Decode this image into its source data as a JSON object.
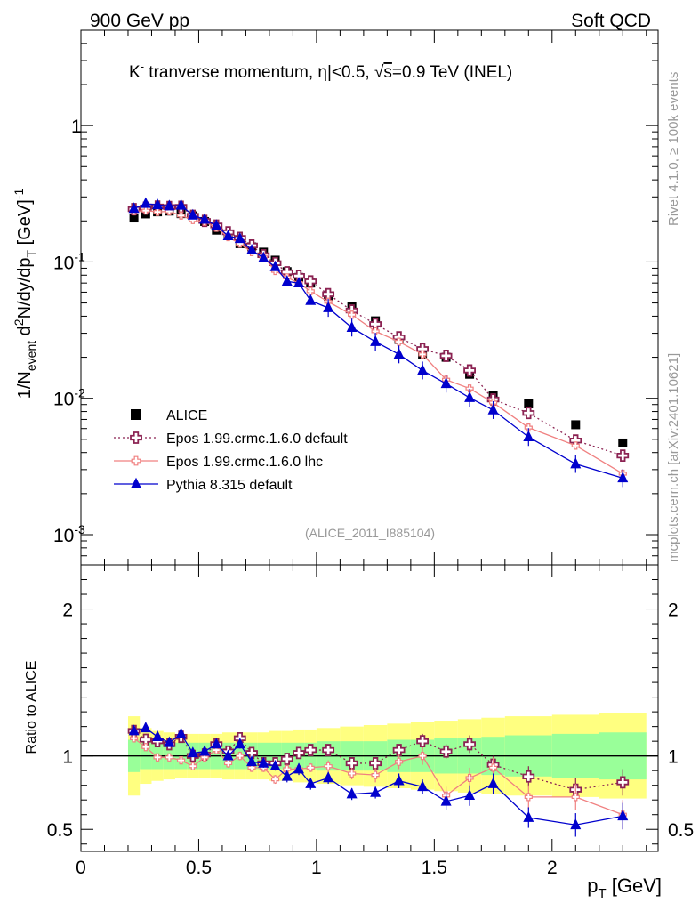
{
  "header": {
    "left": "900 GeV pp",
    "right": "Soft QCD"
  },
  "side": {
    "rivet": "Rivet 4.1.0, ≥ 100k events",
    "mcplots": "mcplots.cern.ch [arXiv:2401.10621]"
  },
  "chart_data": {
    "type": "scatter",
    "title": "K⁻ tranverse momentum, |η|<0.5, √s=0.9 TeV (INEL)",
    "title_parts": {
      "particle": "K",
      "sup": "-",
      "rest1": " tranverse momentum, ",
      "eta": "η",
      "rest2": "|<0.5, ",
      "sqrt": "√",
      "s": "s",
      "rest3": "=0.9 TeV (INEL)"
    },
    "analysis_id": "(ALICE_2011_I885104)",
    "xlabel": "p_T [GeV]",
    "ylabel": "1/N_event d²N/dy/dp_T [GeV]⁻¹",
    "ratio_ylabel": "Ratio to ALICE",
    "xlim": [
      0,
      2.45
    ],
    "ylim": [
      0.0006,
      5
    ],
    "yscale": "log",
    "ratio_ylim": [
      0.35,
      2.3
    ],
    "x_ticks": [
      0,
      0.5,
      1,
      1.5,
      2
    ],
    "x_tick_labels": [
      "0",
      "0.5",
      "1",
      "1.5",
      "2"
    ],
    "y_ticks": [
      0.001,
      0.01,
      0.1,
      1
    ],
    "y_tick_labels": [
      {
        "base": "10",
        "exp": "-3"
      },
      {
        "base": "10",
        "exp": "-2"
      },
      {
        "base": "10",
        "exp": "-1"
      },
      {
        "base": "1",
        "exp": ""
      }
    ],
    "ratio_ticks": [
      0.5,
      1,
      2
    ],
    "ratio_tick_labels": [
      "0.5",
      "1",
      "2"
    ],
    "legend_position": "bottom-left",
    "x": [
      0.225,
      0.275,
      0.325,
      0.375,
      0.425,
      0.475,
      0.525,
      0.575,
      0.625,
      0.675,
      0.725,
      0.775,
      0.825,
      0.875,
      0.925,
      0.975,
      1.05,
      1.15,
      1.25,
      1.35,
      1.45,
      1.55,
      1.65,
      1.75,
      1.9,
      2.1,
      2.3
    ],
    "x_edges": [
      0.2,
      0.25,
      0.3,
      0.35,
      0.4,
      0.45,
      0.5,
      0.55,
      0.6,
      0.65,
      0.7,
      0.75,
      0.8,
      0.85,
      0.9,
      0.95,
      1.0,
      1.1,
      1.2,
      1.3,
      1.4,
      1.5,
      1.6,
      1.7,
      1.8,
      2.0,
      2.2,
      2.4
    ],
    "band_inner": [
      0.11,
      0.09,
      0.09,
      0.09,
      0.09,
      0.09,
      0.09,
      0.09,
      0.09,
      0.09,
      0.09,
      0.09,
      0.09,
      0.09,
      0.09,
      0.09,
      0.1,
      0.1,
      0.1,
      0.11,
      0.11,
      0.12,
      0.12,
      0.13,
      0.14,
      0.15,
      0.16
    ],
    "band_outer": [
      0.27,
      0.19,
      0.17,
      0.16,
      0.15,
      0.15,
      0.15,
      0.15,
      0.16,
      0.16,
      0.16,
      0.16,
      0.17,
      0.17,
      0.18,
      0.18,
      0.19,
      0.2,
      0.21,
      0.22,
      0.23,
      0.24,
      0.25,
      0.26,
      0.27,
      0.28,
      0.29
    ],
    "series": [
      {
        "name": "ALICE",
        "color": "#000000",
        "marker": "square",
        "values": [
          0.21,
          0.225,
          0.233,
          0.236,
          0.226,
          0.218,
          0.198,
          0.171,
          0.16,
          0.136,
          0.129,
          0.118,
          0.103,
          0.085,
          0.077,
          0.07,
          0.056,
          0.047,
          0.037,
          0.027,
          0.021,
          0.02,
          0.015,
          0.0105,
          0.0091,
          0.0064,
          0.0047
        ]
      },
      {
        "name": "Epos 1.99.crmc.1.6.0 default",
        "color": "#8b2252",
        "marker": "cross-open",
        "line": "dotted",
        "values": [
          0.244,
          0.25,
          0.255,
          0.253,
          0.254,
          0.218,
          0.2,
          0.185,
          0.165,
          0.15,
          0.132,
          0.112,
          0.098,
          0.084,
          0.079,
          0.072,
          0.058,
          0.044,
          0.035,
          0.028,
          0.023,
          0.0205,
          0.016,
          0.0098,
          0.0078,
          0.0049,
          0.0038
        ],
        "ratio": [
          1.17,
          1.11,
          1.1,
          1.08,
          1.13,
          1.0,
          1.01,
          1.08,
          1.03,
          1.12,
          1.02,
          0.95,
          0.95,
          0.98,
          1.02,
          1.04,
          1.04,
          0.95,
          0.95,
          1.04,
          1.1,
          1.03,
          1.08,
          0.94,
          0.86,
          0.77,
          0.82
        ],
        "ratio_err": [
          0.02,
          0.02,
          0.02,
          0.02,
          0.02,
          0.02,
          0.02,
          0.02,
          0.02,
          0.02,
          0.02,
          0.03,
          0.03,
          0.03,
          0.03,
          0.03,
          0.03,
          0.04,
          0.04,
          0.04,
          0.05,
          0.05,
          0.06,
          0.06,
          0.07,
          0.08,
          0.09
        ]
      },
      {
        "name": "Epos 1.99.crmc.1.6.0 lhc",
        "color": "#f08080",
        "marker": "cross-small",
        "line": "solid",
        "values": [
          0.235,
          0.238,
          0.233,
          0.235,
          0.219,
          0.203,
          0.197,
          0.178,
          0.152,
          0.136,
          0.118,
          0.109,
          0.086,
          0.077,
          0.07,
          0.061,
          0.051,
          0.041,
          0.031,
          0.026,
          0.021,
          0.0137,
          0.0118,
          0.0093,
          0.0061,
          0.0045,
          0.0028
        ],
        "ratio": [
          1.12,
          1.06,
          0.99,
          0.99,
          0.97,
          0.93,
          0.99,
          1.04,
          0.95,
          1.0,
          0.92,
          0.92,
          0.84,
          0.91,
          0.91,
          0.92,
          0.93,
          0.88,
          0.87,
          0.96,
          1.0,
          0.73,
          0.85,
          0.92,
          0.72,
          0.72,
          0.6
        ],
        "ratio_err": [
          0.02,
          0.02,
          0.02,
          0.02,
          0.02,
          0.02,
          0.02,
          0.03,
          0.03,
          0.03,
          0.03,
          0.03,
          0.03,
          0.03,
          0.03,
          0.03,
          0.04,
          0.04,
          0.05,
          0.05,
          0.06,
          0.06,
          0.07,
          0.07,
          0.08,
          0.09,
          0.1
        ]
      },
      {
        "name": "Pythia 8.315 default",
        "color": "#0000cd",
        "marker": "triangle",
        "line": "solid",
        "values": [
          0.246,
          0.268,
          0.262,
          0.257,
          0.26,
          0.22,
          0.205,
          0.185,
          0.155,
          0.148,
          0.122,
          0.107,
          0.092,
          0.072,
          0.07,
          0.052,
          0.046,
          0.033,
          0.026,
          0.021,
          0.016,
          0.0128,
          0.0101,
          0.0082,
          0.0052,
          0.0033,
          0.0026
        ],
        "ratio": [
          1.17,
          1.19,
          1.13,
          1.09,
          1.15,
          1.02,
          1.03,
          1.08,
          1.0,
          1.08,
          0.96,
          0.95,
          0.93,
          0.86,
          0.91,
          0.81,
          0.85,
          0.74,
          0.75,
          0.83,
          0.79,
          0.69,
          0.73,
          0.81,
          0.58,
          0.53,
          0.59
        ],
        "ratio_err": [
          0.02,
          0.02,
          0.02,
          0.02,
          0.02,
          0.02,
          0.02,
          0.03,
          0.03,
          0.03,
          0.03,
          0.03,
          0.03,
          0.04,
          0.04,
          0.04,
          0.04,
          0.04,
          0.04,
          0.05,
          0.05,
          0.06,
          0.07,
          0.07,
          0.07,
          0.08,
          0.09
        ]
      }
    ]
  }
}
